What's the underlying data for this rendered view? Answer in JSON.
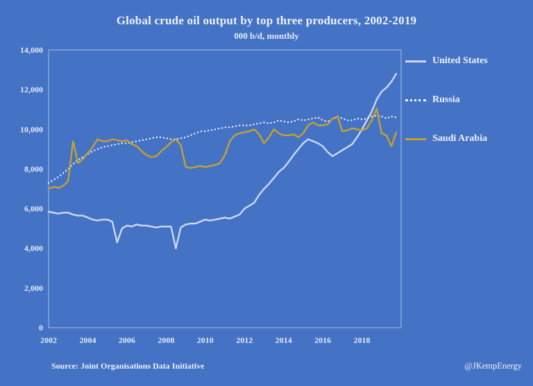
{
  "colors": {
    "background": "#4472C4",
    "us_line": "#CDD9F2",
    "russia_line": "#F2F6FC",
    "saudi_line": "#C7A12E",
    "axis_text": "#E3EBF8",
    "plot_border": "#A9BFE4"
  },
  "footer": {
    "source": "Source: Joint Organisations Data Initiative",
    "credit": "@JKempEnergy"
  },
  "chart_data": {
    "type": "line",
    "title": "Global crude oil output by top three producers, 2002-2019",
    "subtitle": "000 b/d, monthly",
    "xlabel": "",
    "ylabel": "",
    "xlim": [
      2002,
      2020
    ],
    "ylim": [
      0,
      14000
    ],
    "ytick_step": 2000,
    "yticks": [
      "0",
      "2,000",
      "4,000",
      "6,000",
      "8,000",
      "10,000",
      "12,000",
      "14,000"
    ],
    "xticks": [
      2002,
      2004,
      2006,
      2008,
      2010,
      2012,
      2014,
      2016,
      2018
    ],
    "grid": false,
    "legend_position": "right",
    "x": [
      2002.0,
      2002.25,
      2002.5,
      2002.75,
      2003.0,
      2003.25,
      2003.5,
      2003.75,
      2004.0,
      2004.25,
      2004.5,
      2004.75,
      2005.0,
      2005.25,
      2005.5,
      2005.75,
      2006.0,
      2006.25,
      2006.5,
      2006.75,
      2007.0,
      2007.25,
      2007.5,
      2007.75,
      2008.0,
      2008.25,
      2008.5,
      2008.75,
      2009.0,
      2009.25,
      2009.5,
      2009.75,
      2010.0,
      2010.25,
      2010.5,
      2010.75,
      2011.0,
      2011.25,
      2011.5,
      2011.75,
      2012.0,
      2012.25,
      2012.5,
      2012.75,
      2013.0,
      2013.25,
      2013.5,
      2013.75,
      2014.0,
      2014.25,
      2014.5,
      2014.75,
      2015.0,
      2015.25,
      2015.5,
      2015.75,
      2016.0,
      2016.25,
      2016.5,
      2016.75,
      2017.0,
      2017.25,
      2017.5,
      2017.75,
      2018.0,
      2018.25,
      2018.5,
      2018.75,
      2019.0,
      2019.25,
      2019.5,
      2019.75
    ],
    "series": [
      {
        "name": "United States",
        "style": "solid",
        "color": "#CDD9F2",
        "width": 2.4,
        "values": [
          5850,
          5800,
          5750,
          5800,
          5800,
          5700,
          5650,
          5650,
          5550,
          5450,
          5400,
          5450,
          5450,
          5350,
          4300,
          5000,
          5150,
          5100,
          5200,
          5150,
          5150,
          5100,
          5050,
          5100,
          5100,
          5100,
          4000,
          5050,
          5200,
          5250,
          5250,
          5350,
          5450,
          5400,
          5450,
          5500,
          5550,
          5500,
          5600,
          5700,
          6000,
          6150,
          6300,
          6700,
          7000,
          7250,
          7550,
          7850,
          8050,
          8350,
          8700,
          9000,
          9300,
          9500,
          9400,
          9300,
          9150,
          8850,
          8650,
          8800,
          8950,
          9100,
          9250,
          9600,
          10000,
          10450,
          10900,
          11500,
          11900,
          12100,
          12400,
          12800
        ]
      },
      {
        "name": "Russia",
        "style": "dotted",
        "color": "#F2F6FC",
        "width": 2.3,
        "values": [
          7300,
          7450,
          7600,
          7800,
          8000,
          8250,
          8450,
          8600,
          8750,
          8900,
          9000,
          9100,
          9150,
          9200,
          9250,
          9300,
          9300,
          9350,
          9400,
          9450,
          9500,
          9550,
          9600,
          9600,
          9550,
          9500,
          9500,
          9550,
          9600,
          9700,
          9800,
          9900,
          9900,
          9950,
          10000,
          10050,
          10100,
          10100,
          10150,
          10200,
          10200,
          10200,
          10250,
          10300,
          10350,
          10300,
          10350,
          10450,
          10400,
          10350,
          10400,
          10500,
          10450,
          10500,
          10550,
          10600,
          10450,
          10400,
          10500,
          10650,
          10550,
          10450,
          10450,
          10550,
          10500,
          10550,
          10650,
          10700,
          10650,
          10550,
          10650,
          10600
        ]
      },
      {
        "name": "Saudi Arabia",
        "style": "solid",
        "color": "#C7A12E",
        "width": 2.4,
        "values": [
          7000,
          7100,
          7050,
          7150,
          7400,
          9400,
          8300,
          8500,
          8800,
          9100,
          9500,
          9400,
          9400,
          9500,
          9450,
          9400,
          9450,
          9250,
          9150,
          8900,
          8700,
          8600,
          8650,
          8900,
          9100,
          9350,
          9500,
          9200,
          8100,
          8050,
          8100,
          8150,
          8100,
          8150,
          8200,
          8300,
          8700,
          9400,
          9700,
          9800,
          9850,
          9900,
          10000,
          9750,
          9300,
          9600,
          10000,
          9800,
          9700,
          9700,
          9750,
          9600,
          9800,
          10200,
          10350,
          10200,
          10200,
          10250,
          10550,
          10650,
          9900,
          9950,
          10050,
          10000,
          9950,
          10050,
          10450,
          11050,
          9800,
          9700,
          9150,
          9850
        ]
      }
    ]
  }
}
